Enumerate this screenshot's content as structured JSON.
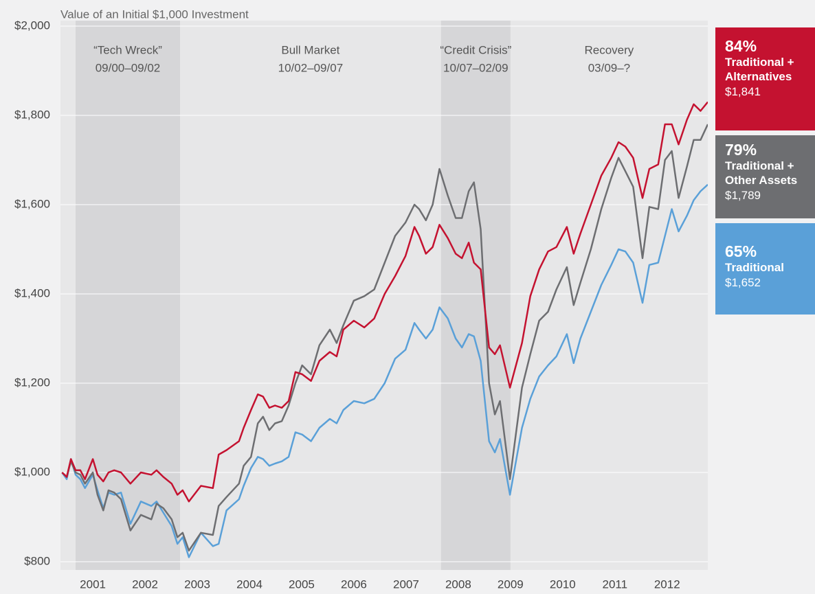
{
  "chart_data": {
    "type": "line",
    "title": "Value of an Initial $1,000 Investment",
    "x": [
      2000.41,
      2000.5,
      2000.58,
      2000.67,
      2000.76,
      2000.85,
      2001,
      2001.09,
      2001.2,
      2001.3,
      2001.41,
      2001.54,
      2001.72,
      2001.92,
      2002.12,
      2002.22,
      2002.35,
      2002.51,
      2002.62,
      2002.72,
      2002.84,
      2003.07,
      2003.3,
      2003.41,
      2003.56,
      2003.8,
      2003.89,
      2004.03,
      2004.16,
      2004.26,
      2004.38,
      2004.49,
      2004.62,
      2004.75,
      2004.88,
      2005.01,
      2005.18,
      2005.34,
      2005.54,
      2005.67,
      2005.8,
      2006,
      2006.2,
      2006.39,
      2006.59,
      2006.79,
      2006.99,
      2007.16,
      2007.25,
      2007.38,
      2007.51,
      2007.64,
      2007.8,
      2007.95,
      2008.07,
      2008.2,
      2008.3,
      2008.43,
      2008.59,
      2008.7,
      2008.8,
      2008.99,
      2009.22,
      2009.38,
      2009.55,
      2009.72,
      2009.88,
      2010.08,
      2010.21,
      2010.34,
      2010.54,
      2010.74,
      2010.93,
      2011.07,
      2011.2,
      2011.35,
      2011.53,
      2011.66,
      2011.83,
      2011.96,
      2012.09,
      2012.22,
      2012.38,
      2012.51,
      2012.64,
      2012.78
    ],
    "series": [
      {
        "name": "Traditional + Alternatives",
        "label_pct": "84%",
        "label_value": "$1,841",
        "color": "#c41230",
        "values": [
          1000,
          990,
          1030,
          1005,
          1005,
          985,
          1030,
          995,
          980,
          1000,
          1005,
          1000,
          975,
          1000,
          995,
          1005,
          990,
          975,
          950,
          960,
          935,
          970,
          965,
          1040,
          1050,
          1070,
          1100,
          1140,
          1175,
          1170,
          1145,
          1150,
          1145,
          1160,
          1225,
          1220,
          1205,
          1250,
          1270,
          1260,
          1320,
          1340,
          1325,
          1345,
          1400,
          1440,
          1485,
          1550,
          1530,
          1490,
          1505,
          1555,
          1525,
          1490,
          1480,
          1515,
          1470,
          1455,
          1280,
          1265,
          1285,
          1190,
          1290,
          1395,
          1455,
          1495,
          1505,
          1550,
          1490,
          1535,
          1600,
          1665,
          1705,
          1740,
          1730,
          1705,
          1615,
          1680,
          1690,
          1780,
          1780,
          1735,
          1790,
          1825,
          1810,
          1830
        ]
      },
      {
        "name": "Traditional + Other Assets",
        "label_pct": "79%",
        "label_value": "$1,789",
        "color": "#6d6e71",
        "values": [
          1000,
          990,
          1025,
          1000,
          995,
          975,
          1000,
          950,
          915,
          960,
          955,
          940,
          870,
          905,
          895,
          930,
          920,
          895,
          855,
          865,
          825,
          865,
          860,
          925,
          945,
          975,
          1015,
          1035,
          1110,
          1125,
          1095,
          1110,
          1115,
          1150,
          1200,
          1240,
          1220,
          1285,
          1320,
          1290,
          1330,
          1385,
          1395,
          1410,
          1470,
          1530,
          1560,
          1600,
          1590,
          1565,
          1600,
          1680,
          1620,
          1570,
          1570,
          1630,
          1650,
          1545,
          1200,
          1130,
          1160,
          985,
          1190,
          1265,
          1340,
          1360,
          1410,
          1460,
          1375,
          1425,
          1500,
          1590,
          1660,
          1705,
          1675,
          1640,
          1480,
          1595,
          1590,
          1700,
          1720,
          1615,
          1685,
          1745,
          1745,
          1780
        ]
      },
      {
        "name": "Traditional",
        "label_pct": "65%",
        "label_value": "$1,652",
        "color": "#5aa0d8",
        "values": [
          1000,
          985,
          1030,
          995,
          985,
          965,
          995,
          960,
          920,
          955,
          950,
          955,
          885,
          935,
          925,
          935,
          910,
          880,
          840,
          855,
          810,
          865,
          835,
          840,
          915,
          940,
          970,
          1010,
          1035,
          1030,
          1015,
          1020,
          1025,
          1035,
          1090,
          1085,
          1070,
          1100,
          1120,
          1110,
          1140,
          1160,
          1155,
          1165,
          1200,
          1255,
          1275,
          1335,
          1320,
          1300,
          1320,
          1370,
          1345,
          1300,
          1280,
          1310,
          1305,
          1250,
          1070,
          1045,
          1075,
          950,
          1100,
          1165,
          1215,
          1240,
          1260,
          1310,
          1245,
          1300,
          1360,
          1420,
          1465,
          1500,
          1495,
          1470,
          1380,
          1465,
          1470,
          1530,
          1590,
          1540,
          1575,
          1610,
          1630,
          1645
        ]
      }
    ],
    "periods": [
      {
        "label": "“Tech Wreck”",
        "dates": "09/00–09/02",
        "start": 2000.67,
        "end": 2002.67,
        "shaded": true
      },
      {
        "label": "Bull Market",
        "dates": "10/02–09/07",
        "start": 2002.67,
        "end": 2007.67,
        "shaded": false
      },
      {
        "label": "“Credit Crisis”",
        "dates": "10/07–02/09",
        "start": 2007.67,
        "end": 2009.0,
        "shaded": true
      },
      {
        "label": "Recovery",
        "dates": "03/09–?",
        "start": 2009.0,
        "end": 2012.78,
        "shaded": false
      }
    ],
    "xlim": [
      2000.38,
      2012.78
    ],
    "xticks": [
      2001,
      2002,
      2003,
      2004,
      2005,
      2006,
      2007,
      2008,
      2009,
      2010,
      2011,
      2012
    ],
    "ylim": [
      800,
      2000
    ],
    "yticks": [
      {
        "value": 800,
        "label": "$800"
      },
      {
        "value": 1000,
        "label": "$1,000"
      },
      {
        "value": 1200,
        "label": "$1,200"
      },
      {
        "value": 1400,
        "label": "$1,400"
      },
      {
        "value": 1600,
        "label": "$1,600"
      },
      {
        "value": 1800,
        "label": "$1,800"
      },
      {
        "value": 2000,
        "label": "$2,000"
      }
    ],
    "grid": true
  }
}
